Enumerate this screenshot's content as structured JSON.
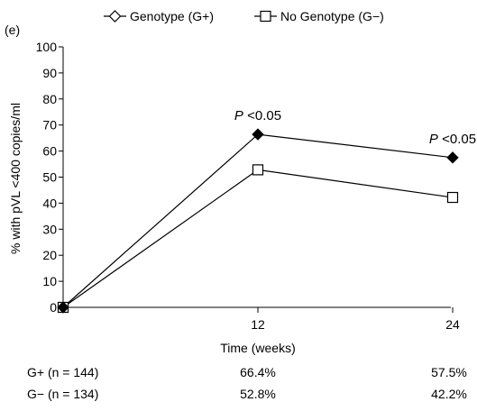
{
  "chart_data": {
    "type": "line",
    "panel_label": "(e)",
    "xlabel": "Time (weeks)",
    "ylabel": "% with pVL <400 copies/ml",
    "x": [
      0,
      12,
      24
    ],
    "x_tick_labels": [
      "",
      "12",
      "24"
    ],
    "ylim": [
      0,
      100
    ],
    "y_ticks": [
      0,
      10,
      20,
      30,
      40,
      50,
      60,
      70,
      80,
      90,
      100
    ],
    "legend_position": "top",
    "series": [
      {
        "name": "Genotype (G+)",
        "marker": "filled-diamond",
        "values": [
          0,
          66.4,
          57.5
        ]
      },
      {
        "name": "No Genotype (G−)",
        "marker": "open-square",
        "values": [
          0,
          52.8,
          42.2
        ]
      }
    ],
    "annotations": [
      {
        "x": 12,
        "y": 66.4,
        "italic": "P",
        "text": " <0.05"
      },
      {
        "x": 24,
        "y": 57.5,
        "italic": "P",
        "text": " <0.05"
      }
    ],
    "table": {
      "rows": [
        {
          "label": "G+  (n = 144)",
          "values": [
            "66.4%",
            "57.5%"
          ]
        },
        {
          "label": "G−  (n = 134)",
          "values": [
            "52.8%",
            "42.2%"
          ]
        }
      ]
    }
  }
}
